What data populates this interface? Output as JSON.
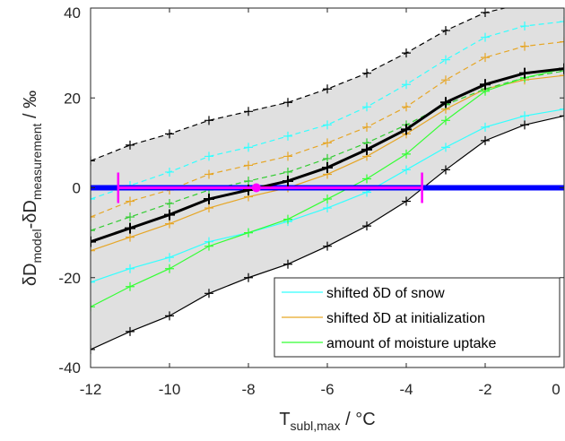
{
  "chart_data": {
    "type": "line",
    "x": [
      -12,
      -11,
      -10,
      -9,
      -8,
      -7,
      -6,
      -5,
      -4,
      -3,
      -2,
      -1,
      0
    ],
    "xlim": [
      -12,
      0
    ],
    "ylim": [
      -40,
      40
    ],
    "xticks": [
      "-12",
      "-10",
      "-8",
      "-6",
      "-4",
      "-2",
      "0"
    ],
    "yticks": [
      "40",
      "20",
      "0",
      "-20",
      "-40"
    ],
    "xlabel": {
      "main": "T",
      "sub": "subl,max",
      "unit": " / °C"
    },
    "ylabel": {
      "d1": "δD",
      "s1": "model",
      "mid": "-δD",
      "s2": "measurement",
      "unit": " / ‰"
    },
    "grid": false,
    "legend_position": "bottom-right",
    "legend": [
      {
        "label": "shifted δD of snow",
        "color": "#33FFFF"
      },
      {
        "label": "shifted δD at initialization",
        "color": "#E6A626"
      },
      {
        "label": "amount of moisture uptake",
        "color": "#33FF33"
      }
    ],
    "envelope": {
      "upper": [
        6,
        9.5,
        12,
        15,
        17,
        19,
        22,
        25.5,
        30,
        35,
        39,
        41,
        43
      ],
      "lower": [
        -36,
        -32,
        -28.5,
        -23.5,
        -20,
        -17,
        -13,
        -8.5,
        -3,
        4,
        10.5,
        14,
        16
      ]
    },
    "central": [
      -12,
      -9,
      -6,
      -2.5,
      -0.5,
      1.5,
      4.5,
      8.5,
      13,
      19,
      23,
      25.5,
      26.5
    ],
    "series": [
      {
        "color": "#000000",
        "dash": "dashed",
        "values": [
          6,
          9.5,
          12,
          15,
          17,
          19,
          22,
          25.5,
          30,
          35,
          39,
          41,
          43
        ]
      },
      {
        "color": "#000000",
        "dash": "solid",
        "values": [
          -36,
          -32,
          -28.5,
          -23.5,
          -20,
          -17,
          -13,
          -8.5,
          -3,
          4,
          10.5,
          14,
          16
        ]
      },
      {
        "color": "#33FFFF",
        "dash": "dashed",
        "values": [
          -2.5,
          0.5,
          3.5,
          7,
          9,
          11.5,
          14,
          18,
          23,
          28.5,
          33.5,
          36,
          37
        ]
      },
      {
        "color": "#33FFFF",
        "dash": "solid",
        "values": [
          -21,
          -18,
          -15.5,
          -12,
          -10,
          -7.5,
          -4.5,
          -1,
          4,
          9,
          13.5,
          16,
          17.5
        ]
      },
      {
        "color": "#E6A626",
        "dash": "dashed",
        "values": [
          -6.5,
          -3,
          -0.5,
          3,
          5,
          7,
          10,
          13.5,
          18,
          24,
          29,
          31.5,
          32.5
        ]
      },
      {
        "color": "#E6A626",
        "dash": "solid",
        "values": [
          -14,
          -11,
          -8,
          -4.5,
          -2,
          0,
          3,
          7,
          12,
          17.5,
          22,
          24,
          25
        ]
      },
      {
        "color": "#33CC33",
        "dash": "dashed",
        "values": [
          -9.5,
          -6.5,
          -3.5,
          -0.5,
          1.5,
          3.5,
          6.5,
          10,
          14,
          18.5,
          22,
          24.5,
          26
        ]
      },
      {
        "color": "#33FF33",
        "dash": "solid",
        "values": [
          -26.5,
          -22,
          -18,
          -13,
          -10,
          -7,
          -2.5,
          2,
          7.5,
          15,
          21.5,
          24.5,
          26.5
        ]
      }
    ],
    "zero_line": {
      "y": 0,
      "color": "#0000FF"
    },
    "magenta_bar": {
      "center_x": -7.8,
      "xmin": -11.3,
      "xmax": -3.6,
      "y": 0,
      "color": "#FF00FF"
    }
  }
}
